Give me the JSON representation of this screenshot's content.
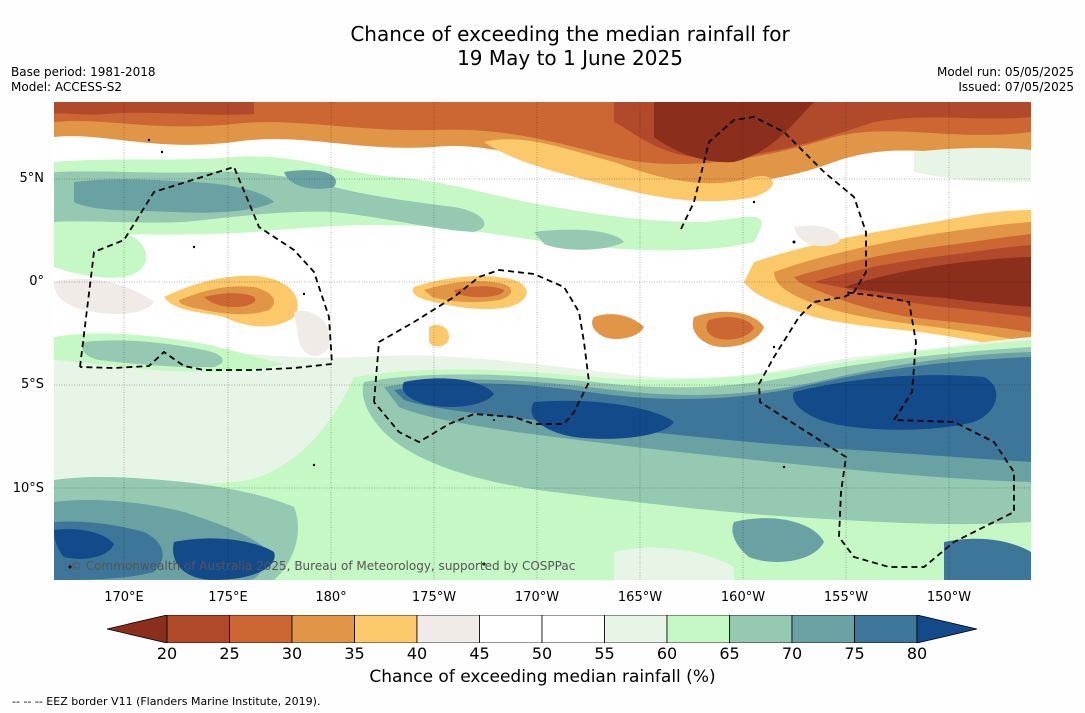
{
  "title": {
    "line1": "Chance of exceeding the median rainfall for",
    "line2": "19 May to 1 June 2025"
  },
  "meta_left": {
    "base_period": "Base period: 1981-2018",
    "model": "Model: ACCESS-S2"
  },
  "meta_right": {
    "model_run": "Model run: 05/05/2025",
    "issued": "Issued: 07/05/2025"
  },
  "lat_labels": [
    "5°N",
    "0°",
    "5°S",
    "10°S"
  ],
  "lon_labels": [
    "170°E",
    "175°E",
    "180°",
    "175°W",
    "170°W",
    "165°W",
    "160°W",
    "155°W",
    "150°W"
  ],
  "copyright": "© Commonwealth of Australia 2025, Bureau of Meteorology, supported by COSPPac",
  "colorbar": {
    "label": "Chance of exceeding median rainfall (%)",
    "ticks": [
      "20",
      "25",
      "30",
      "35",
      "40",
      "45",
      "50",
      "55",
      "60",
      "65",
      "70",
      "75",
      "80"
    ],
    "colors": [
      "#8b2f1c",
      "#b04a2a",
      "#cc6633",
      "#e09646",
      "#fcc96a",
      "#f0ebe7",
      "#ffffff",
      "#ffffff",
      "#e7f5e6",
      "#c6f8c5",
      "#95c9b1",
      "#6aa2a4",
      "#3e7699",
      "#134a8a"
    ]
  },
  "footer": "--  --  -- EEZ border V11 (Flanders Marine Institute, 2019)."
}
